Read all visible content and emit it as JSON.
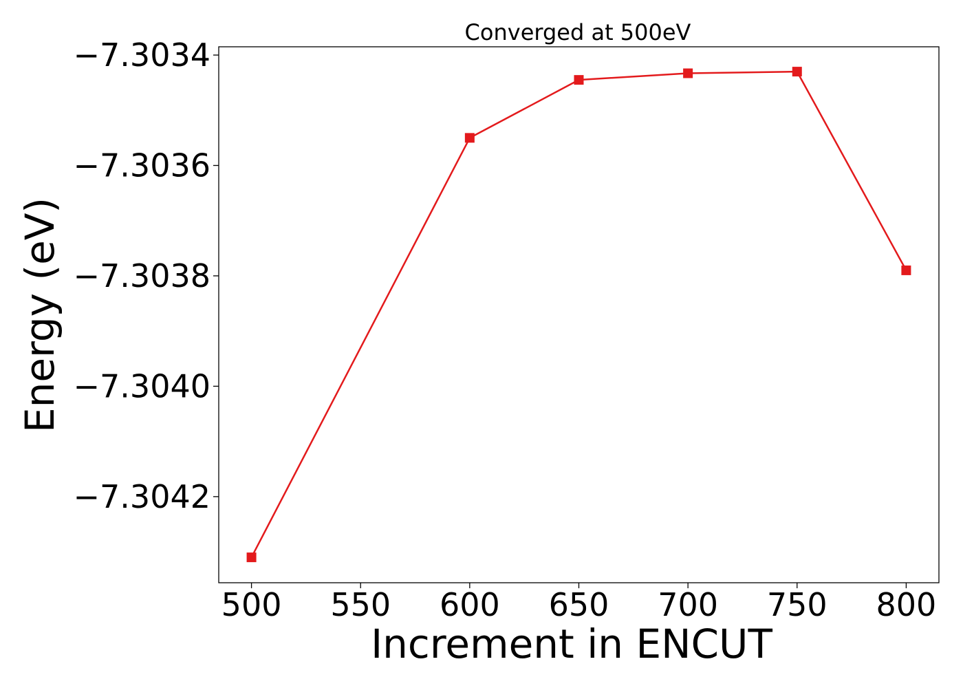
{
  "chart_data": {
    "type": "line",
    "title": "Converged at 500eV",
    "xlabel": "Increment in ENCUT",
    "ylabel": "Energy (eV)",
    "x": [
      500,
      600,
      650,
      700,
      750,
      800
    ],
    "series": [
      {
        "values": [
          -7.30431,
          -7.30355,
          -7.303445,
          -7.303433,
          -7.30343,
          -7.30379
        ],
        "color": "#e31a1c",
        "marker": "square"
      }
    ],
    "xlim": [
      485,
      815
    ],
    "ylim": [
      -7.304356,
      -7.303385
    ],
    "xticks": [
      500,
      550,
      600,
      650,
      700,
      750,
      800
    ],
    "xtick_labels": [
      "500",
      "550",
      "600",
      "650",
      "700",
      "750",
      "800"
    ],
    "yticks": [
      -7.3034,
      -7.3036,
      -7.3038,
      -7.304,
      -7.3042
    ],
    "ytick_labels": [
      "−7.3034",
      "−7.3036",
      "−7.3038",
      "−7.3040",
      "−7.3042"
    ],
    "grid": false,
    "legend": "none"
  }
}
